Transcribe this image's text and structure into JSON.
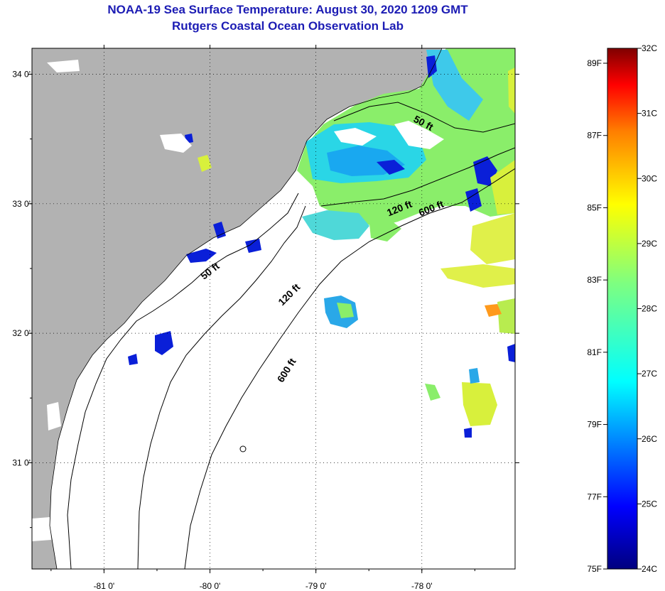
{
  "title": {
    "line1": "NOAA-19 Sea Surface Temperature:  August 30, 2020 1209 GMT",
    "line2": "Rutgers Coastal Ocean Observation Lab"
  },
  "map": {
    "lon_ticks": [
      {
        "value": -81,
        "label": "-81 0'"
      },
      {
        "value": -80,
        "label": "-80 0'"
      },
      {
        "value": -79,
        "label": "-79 0'"
      },
      {
        "value": -78,
        "label": "-78 0'"
      }
    ],
    "lat_ticks": [
      {
        "value": 34,
        "label": "34 0'"
      },
      {
        "value": 33,
        "label": "33 0'"
      },
      {
        "value": 32,
        "label": "32 0'"
      },
      {
        "value": 31,
        "label": "31 0'"
      }
    ],
    "lon_range": [
      -81.68,
      -77.12
    ],
    "lat_range": [
      30.18,
      34.2
    ],
    "grid": "dotted",
    "land_color": "#b2b2b2",
    "water_color": "#ffffff",
    "contour_labels": [
      {
        "text": "50 ft",
        "lon": -79.98,
        "lat": 32.46,
        "angle": -38
      },
      {
        "text": "120 ft",
        "lon": -79.23,
        "lat": 32.28,
        "angle": -45
      },
      {
        "text": "600 ft",
        "lon": -79.25,
        "lat": 31.7,
        "angle": -58
      },
      {
        "text": "50 ft",
        "lon": -78.0,
        "lat": 33.6,
        "angle": 28
      },
      {
        "text": "120 ft",
        "lon": -78.2,
        "lat": 32.94,
        "angle": -22
      },
      {
        "text": "600 ft",
        "lon": -77.9,
        "lat": 32.94,
        "angle": -22
      }
    ]
  },
  "colorbar": {
    "fahrenheit_labels": [
      "89F",
      "87F",
      "85F",
      "83F",
      "81F",
      "79F",
      "77F",
      "75F"
    ],
    "celsius_labels": [
      "32C",
      "31C",
      "30C",
      "29C",
      "28C",
      "27C",
      "26C",
      "25C",
      "24C"
    ],
    "colors": [
      "#00007f",
      "#0000ff",
      "#007fff",
      "#00ffff",
      "#7fff7f",
      "#ffff00",
      "#ff7f00",
      "#ff0000",
      "#7f0000"
    ]
  }
}
